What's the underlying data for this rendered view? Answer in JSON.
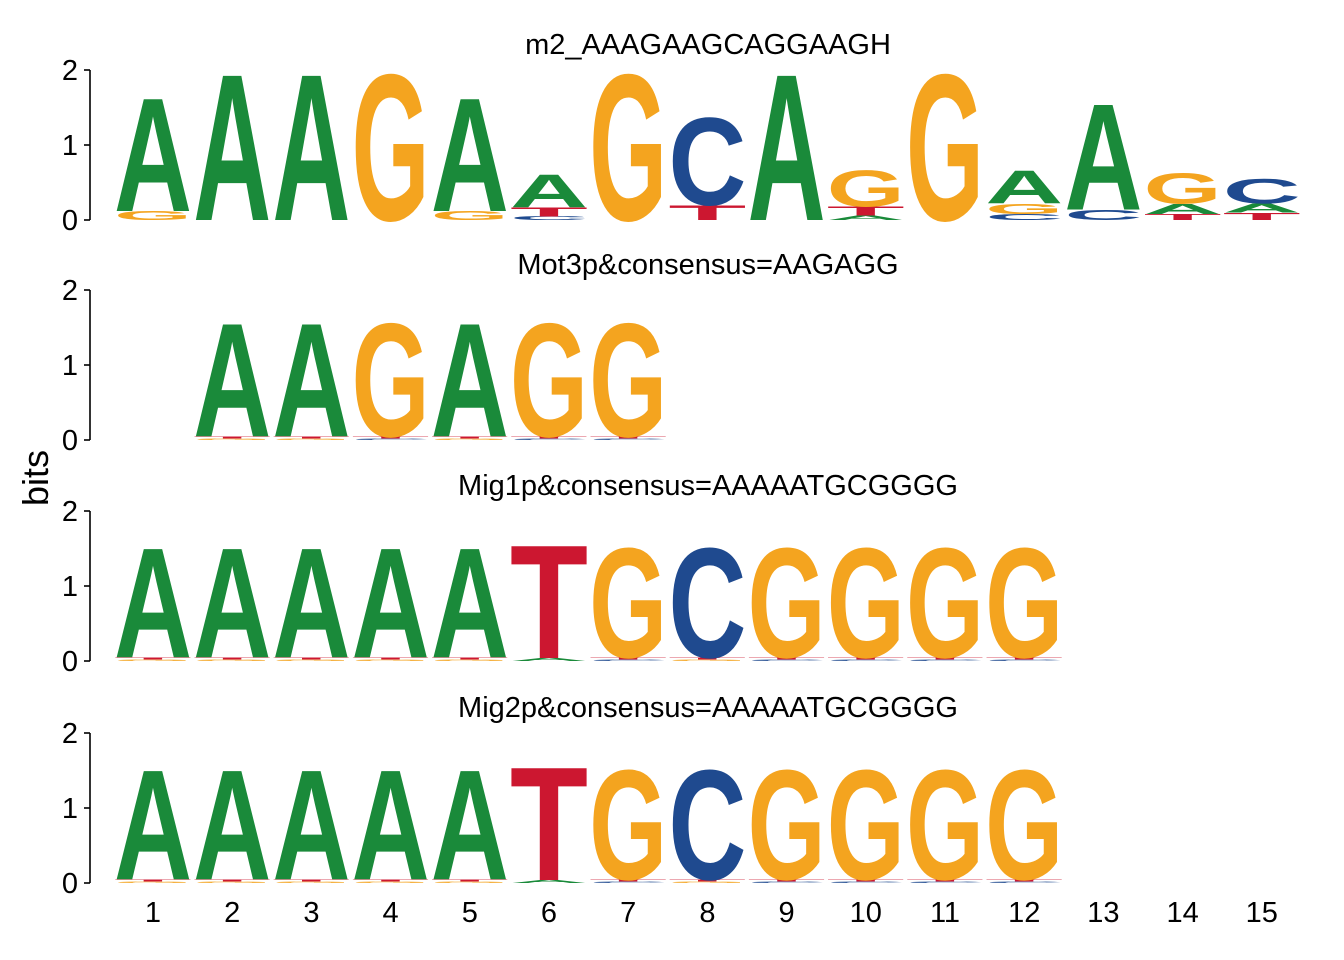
{
  "chart_data": {
    "type": "sequence-logo",
    "ylabel": "bits",
    "ylim": [
      0,
      2
    ],
    "yticks": [
      "0",
      "1",
      "2"
    ],
    "xticks": [
      "1",
      "2",
      "3",
      "4",
      "5",
      "6",
      "7",
      "8",
      "9",
      "10",
      "11",
      "12",
      "13",
      "14",
      "15"
    ],
    "colors": {
      "A": "#1a8a3a",
      "C": "#1f4a8f",
      "G": "#f4a41f",
      "T": "#cc1730"
    },
    "panels": [
      {
        "title": "m2_AAAGAAGCAGGAAGH",
        "start": 1,
        "columns": [
          [
            [
              "G",
              0.12
            ],
            [
              "A",
              1.55
            ]
          ],
          [
            [
              "A",
              2.0
            ]
          ],
          [
            [
              "A",
              2.0
            ]
          ],
          [
            [
              "G",
              2.0
            ]
          ],
          [
            [
              "G",
              0.12
            ],
            [
              "A",
              1.55
            ]
          ],
          [
            [
              "C",
              0.05
            ],
            [
              "T",
              0.12
            ],
            [
              "A",
              0.45
            ]
          ],
          [
            [
              "G",
              2.0
            ]
          ],
          [
            [
              "T",
              0.2
            ],
            [
              "C",
              1.2
            ]
          ],
          [
            [
              "A",
              2.0
            ]
          ],
          [
            [
              "A",
              0.06
            ],
            [
              "T",
              0.12
            ],
            [
              "G",
              0.5
            ]
          ],
          [
            [
              "G",
              2.0
            ]
          ],
          [
            [
              "C",
              0.08
            ],
            [
              "G",
              0.14
            ],
            [
              "A",
              0.45
            ]
          ],
          [
            [
              "C",
              0.14
            ],
            [
              "A",
              1.45
            ]
          ],
          [
            [
              "T",
              0.08
            ],
            [
              "A",
              0.14
            ],
            [
              "G",
              0.42
            ]
          ],
          [
            [
              "T",
              0.1
            ],
            [
              "A",
              0.12
            ],
            [
              "C",
              0.34
            ]
          ]
        ]
      },
      {
        "title": "Mot3p&consensus=AAGAGG",
        "start": 2,
        "columns": [
          [
            [
              "G",
              0.02
            ],
            [
              "T",
              0.03
            ],
            [
              "A",
              1.55
            ]
          ],
          [
            [
              "G",
              0.02
            ],
            [
              "T",
              0.03
            ],
            [
              "A",
              1.55
            ]
          ],
          [
            [
              "C",
              0.02
            ],
            [
              "T",
              0.03
            ],
            [
              "G",
              1.55
            ]
          ],
          [
            [
              "G",
              0.02
            ],
            [
              "T",
              0.03
            ],
            [
              "A",
              1.55
            ]
          ],
          [
            [
              "C",
              0.02
            ],
            [
              "T",
              0.03
            ],
            [
              "G",
              1.55
            ]
          ],
          [
            [
              "C",
              0.02
            ],
            [
              "T",
              0.03
            ],
            [
              "G",
              1.55
            ]
          ]
        ]
      },
      {
        "title": "Mig1p&consensus=AAAAATGCGGGG",
        "start": 1,
        "columns": [
          [
            [
              "G",
              0.02
            ],
            [
              "T",
              0.03
            ],
            [
              "A",
              1.5
            ]
          ],
          [
            [
              "G",
              0.02
            ],
            [
              "T",
              0.03
            ],
            [
              "A",
              1.5
            ]
          ],
          [
            [
              "G",
              0.02
            ],
            [
              "T",
              0.03
            ],
            [
              "A",
              1.5
            ]
          ],
          [
            [
              "G",
              0.02
            ],
            [
              "T",
              0.03
            ],
            [
              "A",
              1.5
            ]
          ],
          [
            [
              "G",
              0.02
            ],
            [
              "T",
              0.03
            ],
            [
              "A",
              1.5
            ]
          ],
          [
            [
              "A",
              0.04
            ],
            [
              "T",
              1.55
            ]
          ],
          [
            [
              "C",
              0.02
            ],
            [
              "T",
              0.03
            ],
            [
              "G",
              1.5
            ]
          ],
          [
            [
              "G",
              0.02
            ],
            [
              "T",
              0.03
            ],
            [
              "C",
              1.5
            ]
          ],
          [
            [
              "C",
              0.02
            ],
            [
              "T",
              0.03
            ],
            [
              "G",
              1.5
            ]
          ],
          [
            [
              "C",
              0.02
            ],
            [
              "T",
              0.03
            ],
            [
              "G",
              1.5
            ]
          ],
          [
            [
              "C",
              0.02
            ],
            [
              "T",
              0.03
            ],
            [
              "G",
              1.5
            ]
          ],
          [
            [
              "C",
              0.02
            ],
            [
              "T",
              0.03
            ],
            [
              "G",
              1.5
            ]
          ]
        ]
      },
      {
        "title": "Mig2p&consensus=AAAAATGCGGGG",
        "start": 1,
        "columns": [
          [
            [
              "G",
              0.02
            ],
            [
              "T",
              0.03
            ],
            [
              "A",
              1.5
            ]
          ],
          [
            [
              "G",
              0.02
            ],
            [
              "T",
              0.03
            ],
            [
              "A",
              1.5
            ]
          ],
          [
            [
              "G",
              0.02
            ],
            [
              "T",
              0.03
            ],
            [
              "A",
              1.5
            ]
          ],
          [
            [
              "G",
              0.02
            ],
            [
              "T",
              0.03
            ],
            [
              "A",
              1.5
            ]
          ],
          [
            [
              "G",
              0.02
            ],
            [
              "T",
              0.03
            ],
            [
              "A",
              1.5
            ]
          ],
          [
            [
              "A",
              0.04
            ],
            [
              "T",
              1.55
            ]
          ],
          [
            [
              "C",
              0.02
            ],
            [
              "T",
              0.03
            ],
            [
              "G",
              1.5
            ]
          ],
          [
            [
              "G",
              0.02
            ],
            [
              "T",
              0.03
            ],
            [
              "C",
              1.5
            ]
          ],
          [
            [
              "C",
              0.02
            ],
            [
              "T",
              0.03
            ],
            [
              "G",
              1.5
            ]
          ],
          [
            [
              "C",
              0.02
            ],
            [
              "T",
              0.03
            ],
            [
              "G",
              1.5
            ]
          ],
          [
            [
              "C",
              0.02
            ],
            [
              "T",
              0.03
            ],
            [
              "G",
              1.5
            ]
          ],
          [
            [
              "C",
              0.02
            ],
            [
              "T",
              0.03
            ],
            [
              "G",
              1.5
            ]
          ]
        ]
      }
    ]
  }
}
